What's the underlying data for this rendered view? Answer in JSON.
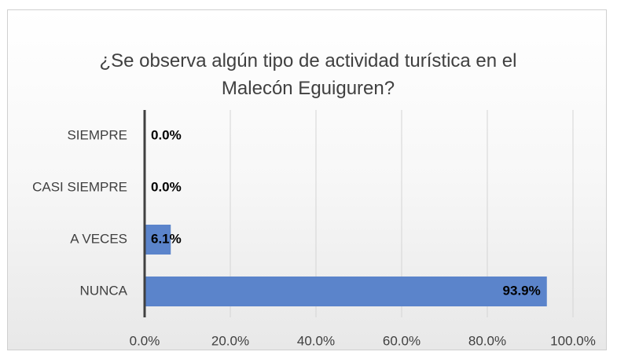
{
  "chart_data": {
    "type": "hbar",
    "title": "¿Se observa algún tipo de actividad turística en el Malecón Eguiguren?",
    "categories": [
      "SIEMPRE",
      "CASI SIEMPRE",
      "A VECES",
      "NUNCA"
    ],
    "values": [
      0,
      0,
      6.1,
      93.9
    ],
    "value_labels": [
      "0.0%",
      "0.0%",
      "6.1%",
      "93.9%"
    ],
    "color": "#5b84cb",
    "xlim": [
      0,
      100
    ],
    "xticks": [
      {
        "value": 0,
        "label": "0.0%"
      },
      {
        "value": 20,
        "label": "20.0%"
      },
      {
        "value": 40,
        "label": "40.0%"
      },
      {
        "value": 60,
        "label": "60.0%"
      },
      {
        "value": 80,
        "label": "80.0%"
      },
      {
        "value": 100,
        "label": "100.0%"
      }
    ],
    "grid": true
  }
}
